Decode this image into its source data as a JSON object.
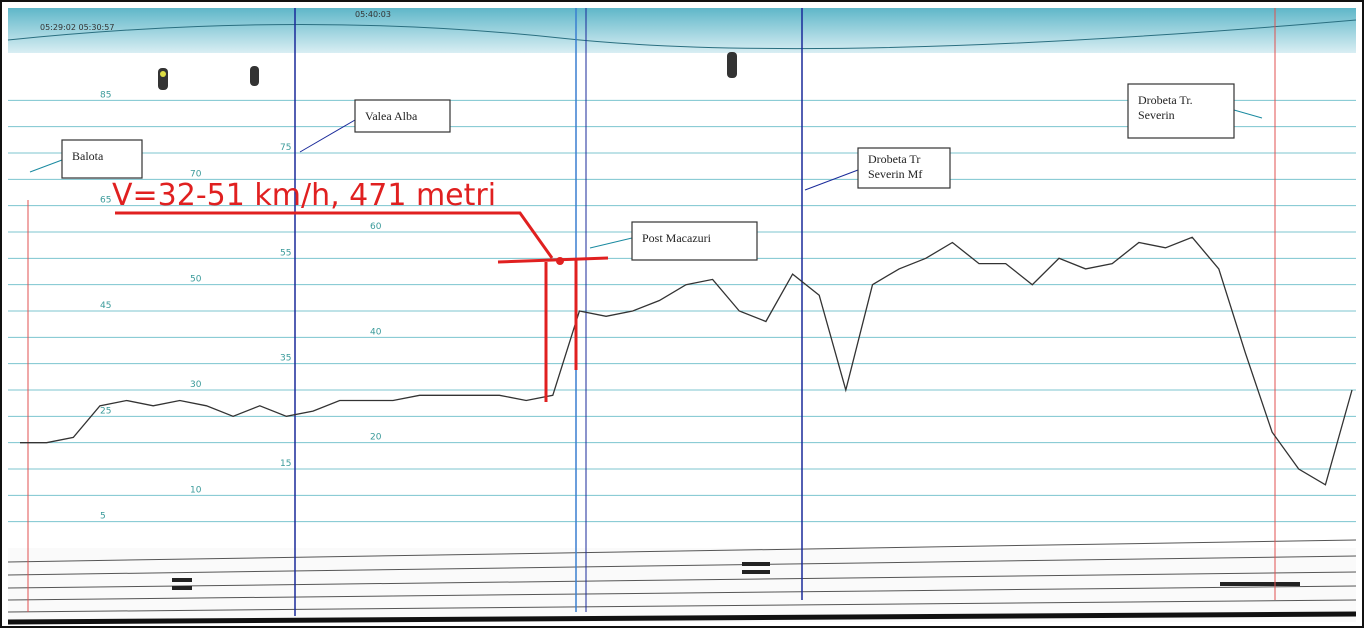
{
  "chart_data": {
    "type": "line",
    "times": [
      "05:29:02  05:30:57",
      "05:40:03"
    ],
    "annotations": [
      "Balota",
      "Valea Alba",
      "V=32-51 km/h, 471 metri",
      "Post Macazuri",
      "Drobeta Tr Severin Mf",
      "Drobeta Tr. Severin"
    ],
    "categories": [
      null,
      null,
      null,
      null,
      null,
      null,
      null,
      null,
      null,
      null,
      null,
      null,
      null,
      null,
      null,
      null,
      null,
      null,
      null,
      null,
      null,
      null,
      null,
      null,
      null,
      null,
      null,
      null,
      null,
      null,
      null,
      null,
      null,
      null,
      null,
      null,
      null,
      null,
      null,
      null,
      null,
      null,
      null,
      null,
      null,
      null,
      null,
      null,
      null,
      null,
      null
    ],
    "values": [
      20,
      20,
      21,
      27,
      28,
      27,
      28,
      27,
      25,
      27,
      25,
      26,
      28,
      28,
      28,
      29,
      29,
      29,
      29,
      28,
      29,
      45,
      44,
      45,
      47,
      50,
      51,
      45,
      43,
      52,
      48,
      30,
      50,
      53,
      55,
      58,
      54,
      54,
      50,
      55,
      53,
      54,
      58,
      57,
      59,
      53,
      37,
      22,
      15,
      12,
      30
    ],
    "color": "#333333",
    "ylim": [
      0,
      90
    ],
    "yticks": [
      5,
      10,
      15,
      20,
      25,
      30,
      35,
      40,
      45,
      50,
      55,
      60,
      65,
      70,
      75,
      80,
      85
    ],
    "grid": true
  }
}
